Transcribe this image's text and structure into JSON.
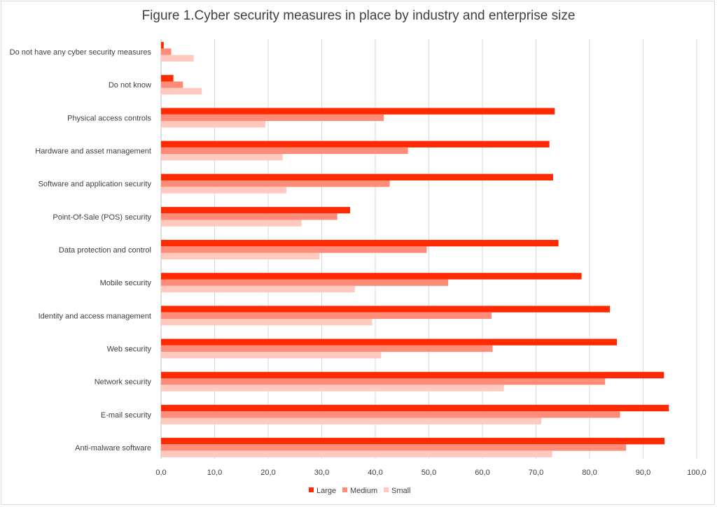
{
  "chart_data": {
    "type": "bar",
    "orientation": "horizontal",
    "title": "Figure 1.Cyber security measures in place by industry and enterprise size",
    "categories": [
      "Do not have any cyber security measures",
      "Do not know",
      "Physical access controls",
      "Hardware and asset management",
      "Software and application security",
      "Point-Of-Sale (POS) security",
      "Data protection and control",
      "Mobile security",
      "Identity  and access management",
      "Web security",
      "Network security",
      "E-mail security",
      "Anti-malware software"
    ],
    "series": [
      {
        "name": "Large",
        "color": "#ff2a00",
        "values": [
          0.5,
          2.3,
          73.5,
          72.5,
          73.2,
          35.3,
          74.2,
          78.5,
          83.8,
          85.1,
          93.9,
          94.8,
          94.0
        ]
      },
      {
        "name": "Medium",
        "color": "#ff8c78",
        "values": [
          1.9,
          4.1,
          41.6,
          46.1,
          42.7,
          32.9,
          49.6,
          53.6,
          61.7,
          61.9,
          82.9,
          85.7,
          86.8
        ]
      },
      {
        "name": "Small",
        "color": "#ffc9bf",
        "values": [
          6.1,
          7.6,
          19.5,
          22.7,
          23.4,
          26.2,
          29.6,
          36.2,
          39.4,
          41.1,
          64.0,
          71.0,
          73.0
        ]
      }
    ],
    "xlim": [
      0,
      100
    ],
    "xticks": [
      "0,0",
      "10,0",
      "20,0",
      "30,0",
      "40,0",
      "50,0",
      "60,0",
      "70,0",
      "80,0",
      "90,0",
      "100,0"
    ],
    "grid": true,
    "legend_position": "bottom"
  }
}
